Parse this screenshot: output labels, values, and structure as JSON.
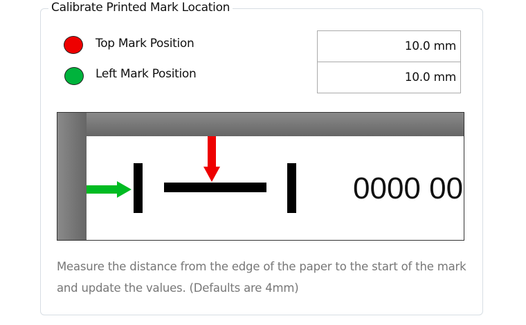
{
  "group": {
    "title": "Calibrate Printed Mark Location"
  },
  "fields": [
    {
      "label": "Top Mark Position",
      "value": "10.0 mm",
      "color": "#ee0000"
    },
    {
      "label": "Left Mark Position",
      "value": "10.0 mm",
      "color": "#00b33c"
    }
  ],
  "diagram": {
    "sample_text": "0000 00",
    "top_arrow_color": "#ee0000",
    "left_arrow_color": "#00bb22"
  },
  "caption": "Measure the distance from the edge of the paper to the start of the mark and update the values. (Defaults are 4mm)"
}
